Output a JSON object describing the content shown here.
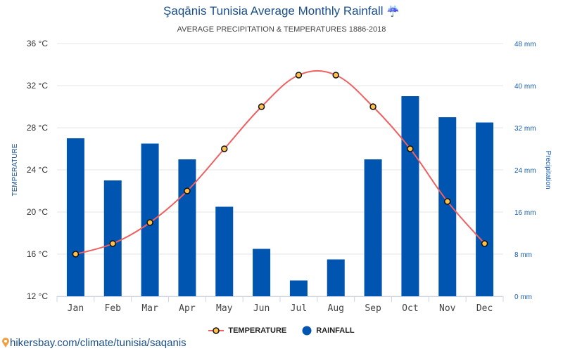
{
  "title": "Şaqānis Tunisia Average Monthly Rainfall",
  "title_icon": "umbrella-rain-icon",
  "subtitle": "AVERAGE PRECIPITATION & TEMPERATURES 1886-2018",
  "footer": {
    "icon": "map-pin-icon",
    "text": "hikersbay.com/climate/tunisia/saqanis"
  },
  "colors": {
    "bar": "#0055b1",
    "line": "#f06060",
    "marker_fill": "#ffc04c",
    "marker_stroke": "#111111",
    "title": "#1a4f8a",
    "right_axis": "#1a5fb4"
  },
  "chart_data": {
    "type": "bar+line",
    "title": "Şaqānis Tunisia Average Monthly Rainfall",
    "categories": [
      "Jan",
      "Feb",
      "Mar",
      "Apr",
      "May",
      "Jun",
      "Jul",
      "Aug",
      "Sep",
      "Oct",
      "Nov",
      "Dec"
    ],
    "series": [
      {
        "name": "RAINFALL",
        "type": "bar",
        "axis": "right",
        "unit": "mm",
        "values": [
          30,
          22,
          29,
          26,
          17,
          9,
          3,
          7,
          26,
          38,
          34,
          33
        ]
      },
      {
        "name": "TEMPERATURE",
        "type": "line",
        "axis": "left",
        "unit": "°C",
        "values": [
          16,
          17,
          19,
          22,
          26,
          30,
          33,
          33,
          30,
          26,
          21,
          17
        ]
      }
    ],
    "ylabel_left": "TEMPERATURE",
    "ylabel_right": "Precipitation",
    "ylim_left": [
      12,
      36
    ],
    "ylim_right": [
      0,
      48
    ],
    "yticks_left": [
      "12 °C",
      "16 °C",
      "20 °C",
      "24 °C",
      "28 °C",
      "32 °C",
      "36 °C"
    ],
    "yticks_right": [
      "0 mm",
      "8 mm",
      "16 mm",
      "24 mm",
      "32 mm",
      "40 mm",
      "48 mm"
    ],
    "grid": true,
    "legend": [
      "TEMPERATURE",
      "RAINFALL"
    ],
    "legend_position": "bottom"
  }
}
